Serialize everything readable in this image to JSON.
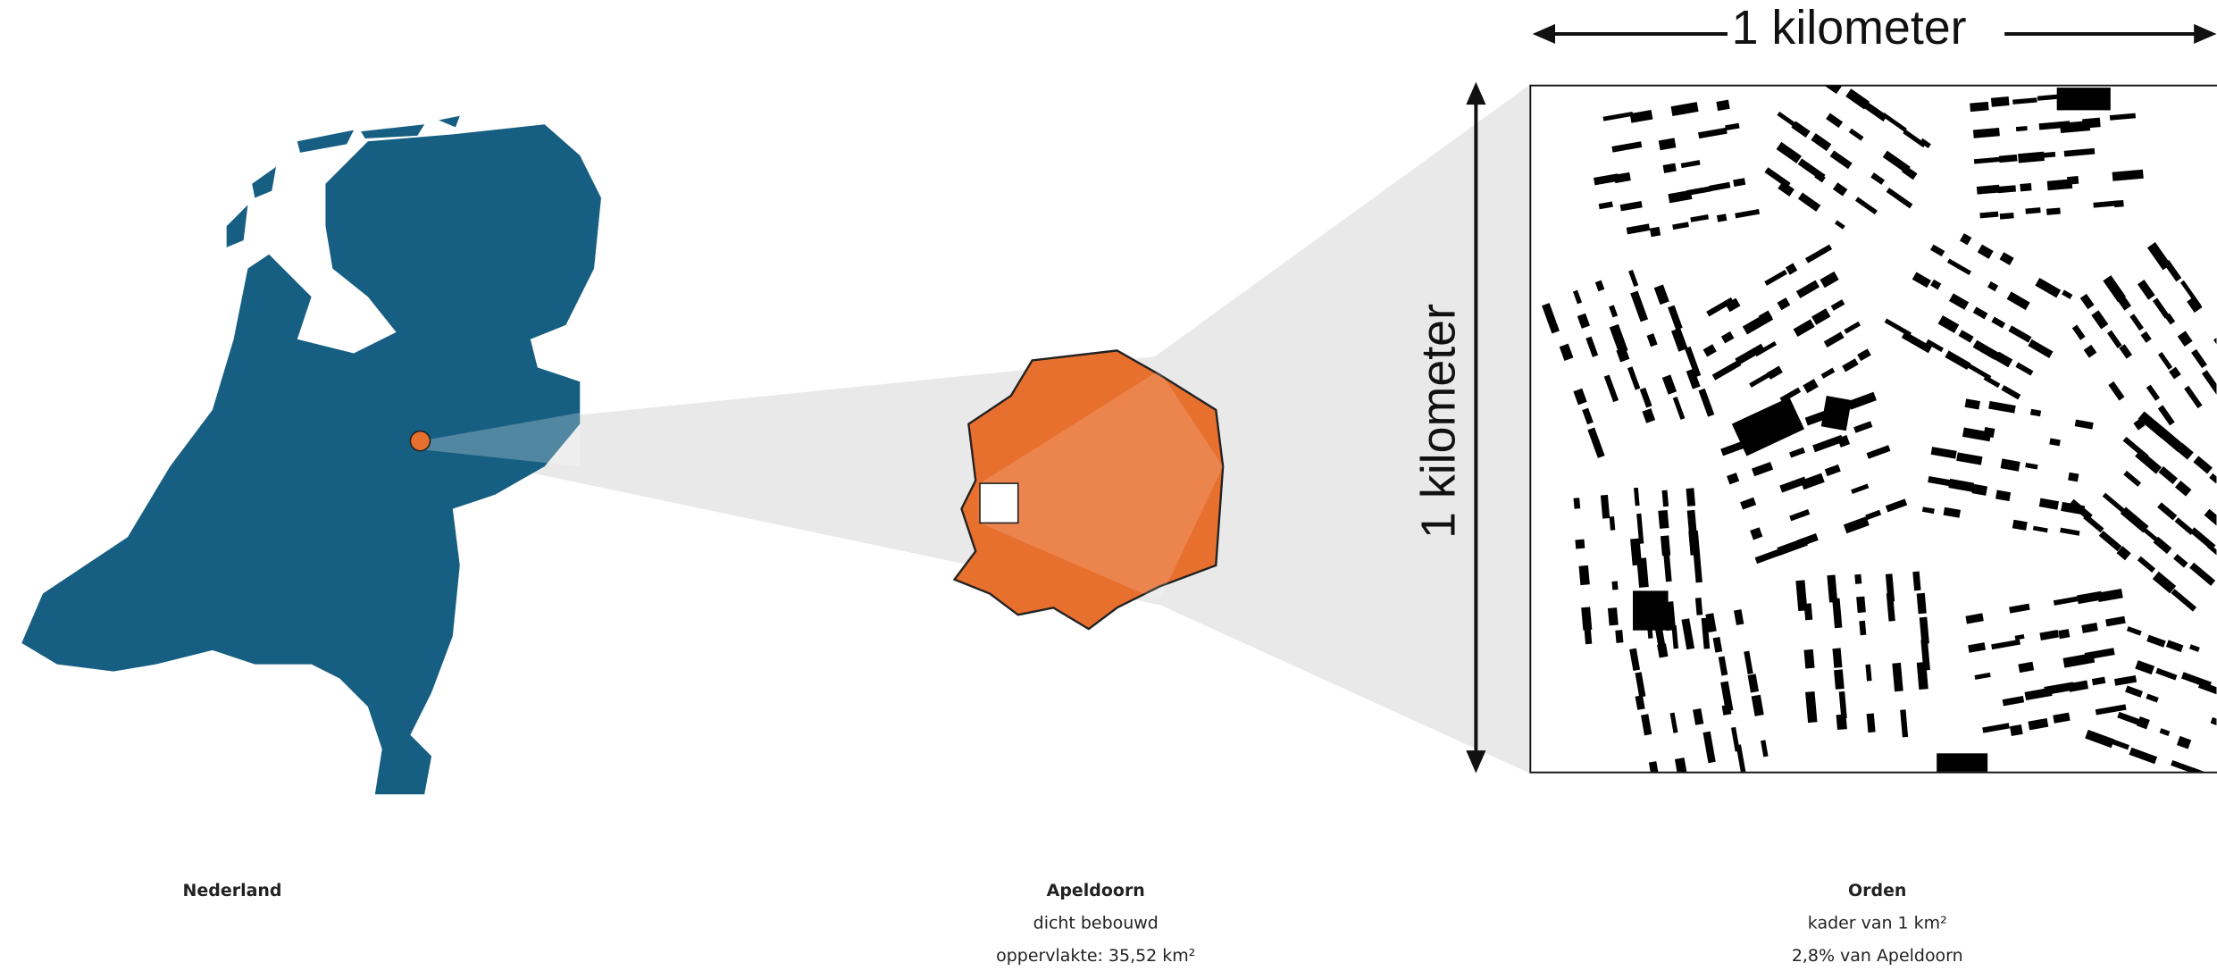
{
  "scale": {
    "horizontal": "1 kilometer",
    "vertical": "1 kilometer"
  },
  "panels": [
    {
      "title": "Nederland"
    },
    {
      "title": "Apeldoorn",
      "lines": [
        "dicht bebouwd",
        "oppervlakte: 35,52 km²"
      ]
    },
    {
      "title": "Orden",
      "lines": [
        "kader van 1 km²",
        "2,8% van Apeldoorn"
      ]
    }
  ]
}
